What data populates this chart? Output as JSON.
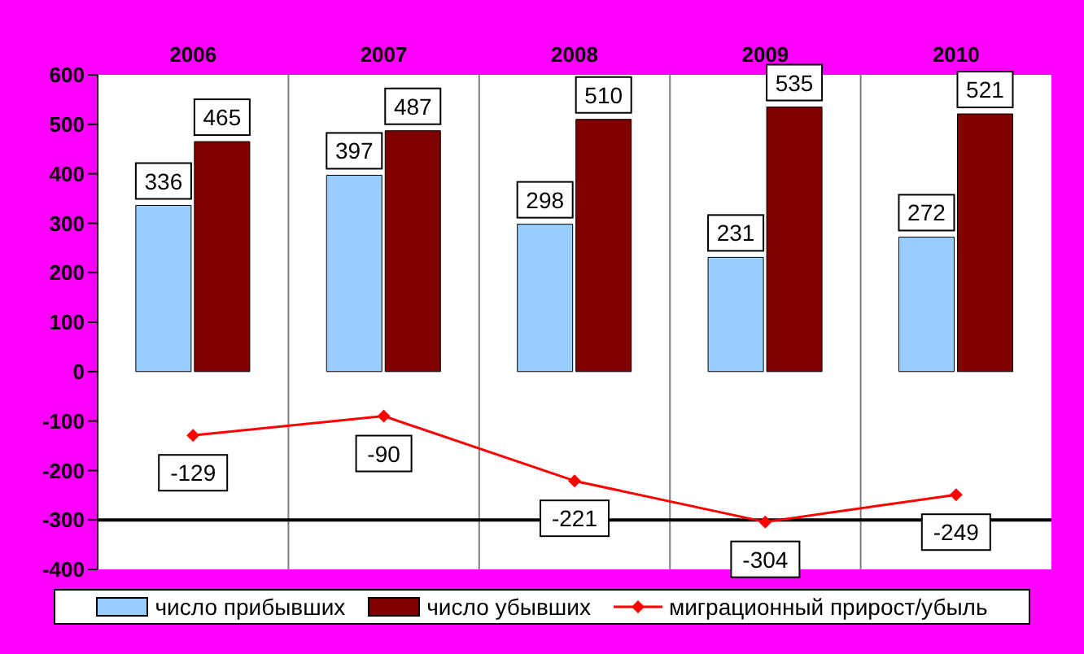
{
  "chart_data": {
    "type": "bar",
    "categories": [
      "2006",
      "2007",
      "2008",
      "2009",
      "2010"
    ],
    "series": [
      {
        "name": "число прибывших",
        "color": "#99ccff",
        "values": [
          336,
          397,
          298,
          231,
          272
        ]
      },
      {
        "name": "число убывших",
        "color": "#800000",
        "values": [
          465,
          487,
          510,
          535,
          521
        ]
      },
      {
        "name": "миграционный прирост/убыль",
        "type": "line",
        "color": "#ff0000",
        "marker": "diamond",
        "values": [
          -129,
          -90,
          -221,
          -304,
          -249
        ]
      }
    ],
    "ylim": [
      -400,
      600
    ],
    "yticks": [
      -400,
      -300,
      -200,
      -100,
      0,
      100,
      200,
      300,
      400,
      500,
      600
    ],
    "grid": "x",
    "legend": "bottom",
    "data_labels": true,
    "ref_lines": [
      {
        "axis": "y",
        "value": -300,
        "color": "#000000"
      }
    ]
  }
}
